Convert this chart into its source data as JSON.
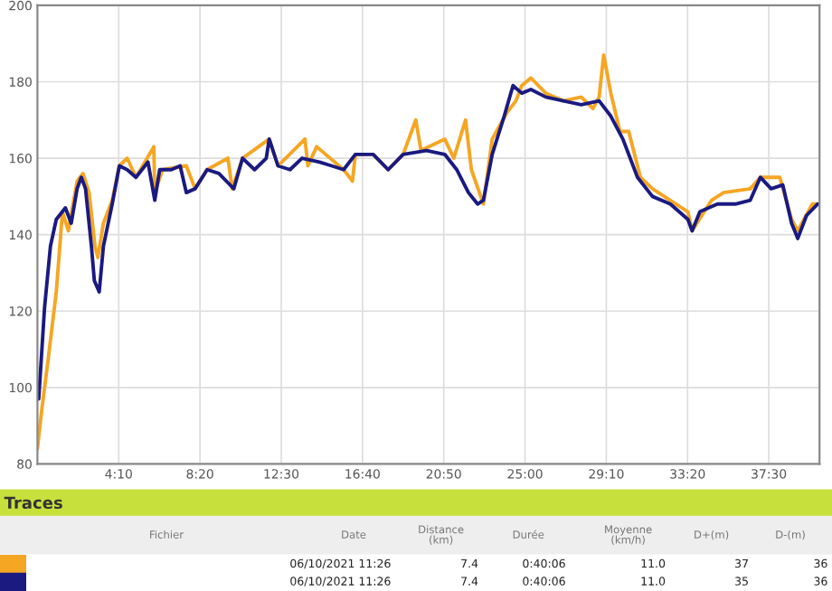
{
  "chart_data": {
    "type": "line",
    "xlim": [
      0,
      2406
    ],
    "ylim": [
      80,
      200
    ],
    "xticks": [
      {
        "value": 250,
        "label": "4:10"
      },
      {
        "value": 500,
        "label": "8:20"
      },
      {
        "value": 750,
        "label": "12:30"
      },
      {
        "value": 1000,
        "label": "16:40"
      },
      {
        "value": 1250,
        "label": "20:50"
      },
      {
        "value": 1500,
        "label": "25:00"
      },
      {
        "value": 1750,
        "label": "29:10"
      },
      {
        "value": 2000,
        "label": "33:20"
      },
      {
        "value": 2250,
        "label": "37:30"
      }
    ],
    "yticks": [
      80,
      100,
      120,
      140,
      160,
      180,
      200
    ],
    "grid": true,
    "legend": false,
    "marker": "none",
    "line_style": "solid",
    "series": [
      {
        "color": "#f5a623",
        "x": [
          0,
          13,
          31,
          58,
          77,
          95,
          122,
          140,
          159,
          177,
          186,
          203,
          230,
          252,
          276,
          303,
          358,
          361,
          385,
          458,
          485,
          522,
          586,
          599,
          631,
          713,
          740,
          823,
          832,
          859,
          942,
          969,
          978,
          1033,
          1079,
          1125,
          1164,
          1180,
          1253,
          1281,
          1317,
          1335,
          1372,
          1399,
          1445,
          1472,
          1490,
          1518,
          1564,
          1618,
          1673,
          1709,
          1728,
          1742,
          1764,
          1792,
          1819,
          1855,
          1892,
          2001,
          2014,
          2074,
          2111,
          2193,
          2224,
          2284,
          2320,
          2339,
          2384,
          2400
        ],
        "values": [
          84,
          94,
          106,
          125,
          146,
          141,
          154,
          156,
          151,
          137,
          134,
          143,
          149,
          158,
          160,
          155,
          163,
          151,
          157,
          158,
          152,
          157,
          160,
          152,
          160,
          165,
          158,
          165,
          158,
          163,
          157,
          154,
          161,
          161,
          157,
          161,
          170,
          162,
          165,
          160,
          170,
          157,
          148,
          165,
          172,
          175,
          179,
          181,
          177,
          175,
          176,
          173,
          176,
          187,
          177,
          167,
          167,
          155,
          152,
          146,
          141,
          149,
          151,
          152,
          155,
          155,
          144,
          141,
          148,
          148
        ]
      },
      {
        "color": "#1a1a80",
        "x": [
          4,
          22,
          40,
          58,
          86,
          104,
          122,
          135,
          148,
          166,
          175,
          190,
          203,
          230,
          252,
          276,
          303,
          340,
          361,
          376,
          412,
          439,
          458,
          485,
          522,
          558,
          604,
          631,
          668,
          704,
          713,
          740,
          777,
          814,
          868,
          905,
          942,
          978,
          1033,
          1079,
          1125,
          1197,
          1253,
          1290,
          1326,
          1354,
          1372,
          1399,
          1436,
          1463,
          1490,
          1518,
          1564,
          1618,
          1673,
          1728,
          1764,
          1801,
          1846,
          1892,
          1947,
          2001,
          2014,
          2038,
          2092,
          2147,
          2193,
          2224,
          2257,
          2293,
          2320,
          2339,
          2366,
          2400
        ],
        "values": [
          97,
          121,
          137,
          144,
          147,
          143,
          152,
          155,
          152,
          137,
          128,
          125,
          137,
          148,
          158,
          157,
          155,
          159,
          149,
          157,
          157,
          158,
          151,
          152,
          157,
          156,
          152,
          160,
          157,
          160,
          165,
          158,
          157,
          160,
          159,
          158,
          157,
          161,
          161,
          157,
          161,
          162,
          161,
          157,
          151,
          148,
          149,
          161,
          171,
          179,
          177,
          178,
          176,
          175,
          174,
          175,
          171,
          165,
          155,
          150,
          148,
          144,
          141,
          146,
          148,
          148,
          149,
          155,
          152,
          153,
          143,
          139,
          145,
          148
        ]
      }
    ],
    "annotations": [
      "Traces",
      "Fichier",
      "Date",
      "Distance\n(km)",
      "Durée",
      "Moyenne\n(km/h)",
      "D+(m)",
      "D-(m)",
      "06/10/2021 11:26",
      "7.4",
      "0:40:06",
      "11.0",
      "37",
      "36",
      "06/10/2021 11:26",
      "7.4",
      "0:40:06",
      "11.0",
      "35",
      "36"
    ]
  }
}
